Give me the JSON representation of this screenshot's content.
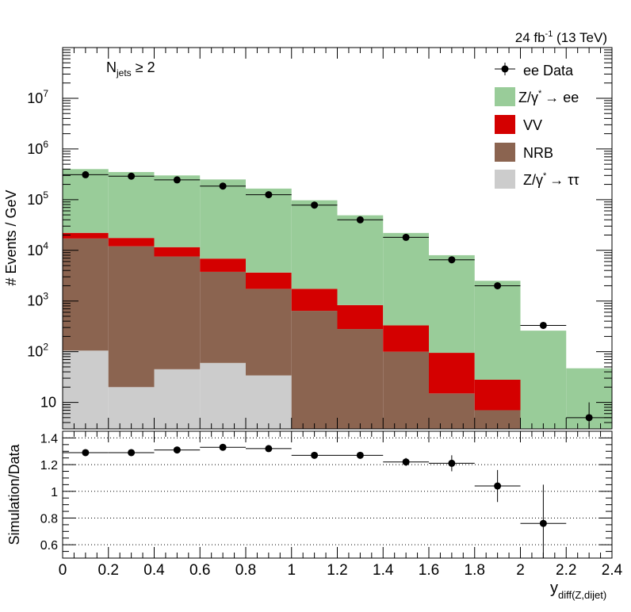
{
  "header": {
    "lumi_label": "24 fb",
    "lumi_exp": "-1",
    "energy_label": " (13 TeV)"
  },
  "annotation": {
    "main": "N",
    "sub": "jets",
    "rest": " ≥ 2"
  },
  "legend": {
    "data": "ee Data",
    "zee": "Z/γ",
    "zee_arrow": "→ ee",
    "vv": "VV",
    "nrb": "NRB",
    "ztt": "Z/γ",
    "ztt_arrow": "→ ττ",
    "star": "*"
  },
  "chart_data": [
    {
      "type": "bar",
      "stacked": true,
      "yscale": "log",
      "ylabel": "# Events / GeV",
      "xlim": [
        0,
        2.4
      ],
      "ylim": [
        3,
        100000000
      ],
      "bin_edges": [
        0,
        0.2,
        0.4,
        0.6,
        0.8,
        1.0,
        1.2,
        1.4,
        1.6,
        1.8,
        2.0,
        2.2,
        2.4
      ],
      "y_tick_labels": [
        "10",
        "10²",
        "10³",
        "10⁴",
        "10⁵",
        "10⁶",
        "10⁷"
      ],
      "series": [
        {
          "name": "Z/γ* → ττ",
          "color": "#cccccc",
          "values": [
            105,
            20,
            45,
            60,
            34,
            0,
            0,
            0,
            0,
            0,
            0,
            0
          ]
        },
        {
          "name": "NRB",
          "color": "#8b6450",
          "values": [
            17000,
            12000,
            7500,
            3700,
            1700,
            640,
            280,
            100,
            15,
            7,
            0,
            0
          ]
        },
        {
          "name": "VV",
          "color": "#d40000",
          "values": [
            5000,
            5500,
            4000,
            3100,
            1900,
            1100,
            550,
            230,
            80,
            21,
            3,
            0
          ]
        },
        {
          "name": "Z/γ* → ee",
          "color": "#99cc99",
          "values": [
            378000,
            332500,
            288500,
            243200,
            161400,
            95260,
            48170,
            21670,
            7905,
            2472,
            257,
            47
          ]
        }
      ],
      "data_points": {
        "name": "ee Data",
        "x": [
          0.1,
          0.3,
          0.5,
          0.7,
          0.9,
          1.1,
          1.3,
          1.5,
          1.7,
          1.9,
          2.1,
          2.3
        ],
        "y": [
          310000,
          290000,
          245000,
          185000,
          125000,
          78000,
          40000,
          18000,
          6500,
          2000,
          330,
          5
        ]
      },
      "annotation": "N_jets ≥ 2",
      "legend_position": "top-right"
    },
    {
      "type": "scatter",
      "ylabel": "Simulation/Data",
      "xlabel": "y_diff(Z,dijet)",
      "xlim": [
        0,
        2.4
      ],
      "ylim": [
        0.5,
        1.45
      ],
      "grid": true,
      "y_gridlines": [
        0.6,
        0.8,
        1.0,
        1.2,
        1.4
      ],
      "x_tick_labels": [
        "0",
        "0.2",
        "0.4",
        "0.6",
        "0.8",
        "1",
        "1.2",
        "1.4",
        "1.6",
        "1.8",
        "2",
        "2.2",
        "2.4"
      ],
      "y_tick_labels": [
        "0.6",
        "0.8",
        "1",
        "1.2",
        "1.4"
      ],
      "x": [
        0.1,
        0.3,
        0.5,
        0.7,
        0.9,
        1.1,
        1.3,
        1.5,
        1.7,
        1.9,
        2.1
      ],
      "y": [
        1.29,
        1.29,
        1.31,
        1.33,
        1.32,
        1.27,
        1.27,
        1.22,
        1.21,
        1.04,
        0.76
      ],
      "yerr": [
        0.01,
        0.01,
        0.01,
        0.01,
        0.01,
        0.01,
        0.015,
        0.03,
        0.06,
        0.12,
        0.29
      ]
    }
  ],
  "axes": {
    "xlabel_main": "y",
    "xlabel_sub": "diff(Z,dijet)",
    "ylabel_top": "# Events / GeV",
    "ylabel_bottom": "Simulation/Data"
  }
}
